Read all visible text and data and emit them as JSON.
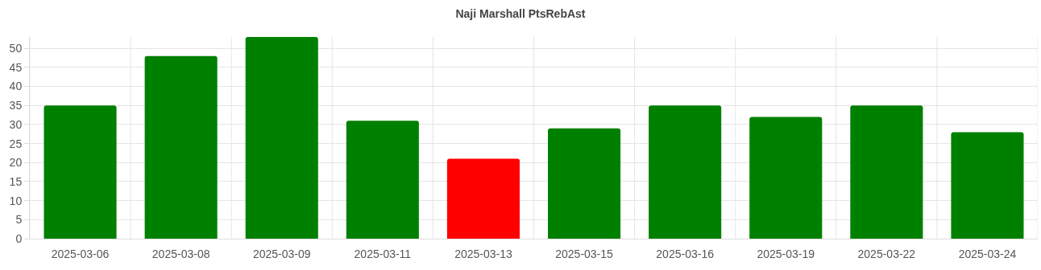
{
  "chart_data": {
    "type": "bar",
    "title": "Naji Marshall PtsRebAst",
    "categories": [
      "2025-03-06",
      "2025-03-08",
      "2025-03-09",
      "2025-03-11",
      "2025-03-13",
      "2025-03-15",
      "2025-03-16",
      "2025-03-19",
      "2025-03-22",
      "2025-03-24"
    ],
    "values": [
      35,
      48,
      53,
      31,
      21,
      29,
      35,
      32,
      35,
      28
    ],
    "colors": [
      "#008000",
      "#008000",
      "#008000",
      "#008000",
      "#ff0000",
      "#008000",
      "#008000",
      "#008000",
      "#008000",
      "#008000"
    ],
    "ylim": [
      0,
      53
    ],
    "yticks": [
      0,
      5,
      10,
      15,
      20,
      25,
      30,
      35,
      40,
      45,
      50
    ],
    "grid": true
  }
}
